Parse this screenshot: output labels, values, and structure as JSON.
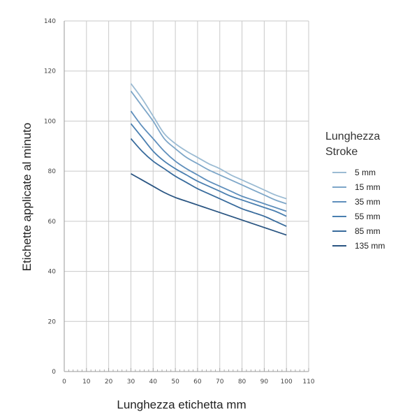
{
  "chart_data": {
    "type": "line",
    "xlabel": "Lunghezza etichetta mm",
    "ylabel": "Etichette applicate al minuto",
    "xlim": [
      0,
      110
    ],
    "ylim": [
      0,
      140
    ],
    "xticks": [
      0,
      10,
      20,
      30,
      40,
      50,
      60,
      70,
      80,
      90,
      100,
      110
    ],
    "yticks": [
      0,
      20,
      40,
      60,
      80,
      100,
      120,
      140
    ],
    "grid": true,
    "legend": {
      "title_lines": [
        "Lunghezza",
        "Stroke"
      ],
      "placement": "right"
    },
    "x": [
      30,
      35,
      40,
      45,
      50,
      55,
      60,
      65,
      70,
      75,
      80,
      85,
      90,
      95,
      100
    ],
    "series": [
      {
        "name": "5 mm",
        "color": "#9bbbd3",
        "values": [
          115,
          109,
          102,
          95,
          91,
          88,
          85.5,
          83,
          81,
          78.5,
          76.5,
          74.5,
          72.5,
          70.5,
          69
        ]
      },
      {
        "name": "15 mm",
        "color": "#7da6c8",
        "values": [
          112,
          106,
          100,
          93,
          89,
          85.5,
          83,
          80.5,
          78.5,
          76.5,
          74.5,
          72.5,
          70.5,
          68.5,
          67
        ]
      },
      {
        "name": "35 mm",
        "color": "#5f8fbc",
        "values": [
          104,
          98,
          93,
          88,
          84,
          81,
          78.5,
          76,
          74,
          72,
          70,
          68.5,
          67,
          65.5,
          64
        ]
      },
      {
        "name": "55 mm",
        "color": "#4a7fb0",
        "values": [
          99,
          93.5,
          88,
          84,
          81,
          78.5,
          76,
          74,
          72,
          70,
          68.5,
          67,
          65.5,
          64,
          62
        ]
      },
      {
        "name": "85 mm",
        "color": "#386b9c",
        "values": [
          93,
          88,
          84,
          81,
          78,
          75.5,
          73,
          71,
          69,
          67,
          65,
          63.5,
          62,
          60,
          58
        ]
      },
      {
        "name": "135 mm",
        "color": "#2a5582",
        "values": [
          79,
          76.5,
          74,
          71.5,
          69.5,
          68,
          66.5,
          65,
          63.5,
          62,
          60.5,
          59,
          57.5,
          56,
          54.5
        ]
      }
    ]
  }
}
